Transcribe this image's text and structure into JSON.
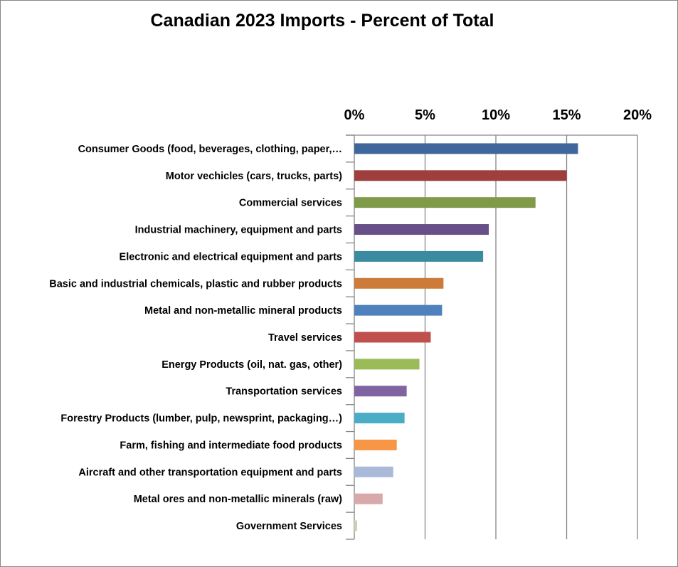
{
  "chart_data": {
    "type": "bar",
    "orientation": "horizontal",
    "title": "Canadian 2023 Imports - Percent of Total",
    "xlabel": "",
    "ylabel": "",
    "xlim": [
      0,
      20
    ],
    "x_ticks": [
      "0%",
      "5%",
      "10%",
      "15%",
      "20%"
    ],
    "x_tick_values": [
      0,
      5,
      10,
      15,
      20
    ],
    "axis_position": "top",
    "grid": true,
    "legend": "none",
    "categories": [
      "Consumer Goods (food, beverages, clothing, paper,…",
      "Motor vechicles (cars, trucks, parts)",
      "Commercial services",
      "Industrial machinery, equipment and parts",
      "Electronic and electrical equipment and parts",
      "Basic and industrial chemicals, plastic and rubber products",
      "Metal and non-metallic mineral products",
      "Travel services",
      "Energy Products (oil, nat. gas, other)",
      "Transportation services",
      "Forestry  Products (lumber, pulp, newsprint, packaging…)",
      "Farm, fishing and intermediate food products",
      "Aircraft and other transportation equipment and parts",
      "Metal ores and non-metallic minerals (raw)",
      "Government Services"
    ],
    "values": [
      15.8,
      15.0,
      12.8,
      9.5,
      9.1,
      6.3,
      6.2,
      5.4,
      4.6,
      3.7,
      3.55,
      3.0,
      2.75,
      2.0,
      0.2
    ],
    "colors": [
      "#40679b",
      "#9e3f3d",
      "#7f9a48",
      "#674f87",
      "#3a8aa0",
      "#cc7b38",
      "#4f81bd",
      "#c0504d",
      "#9bbb59",
      "#8064a2",
      "#4bacc6",
      "#f79646",
      "#a9b9d7",
      "#d7a9aa",
      "#c6d5b0"
    ]
  }
}
